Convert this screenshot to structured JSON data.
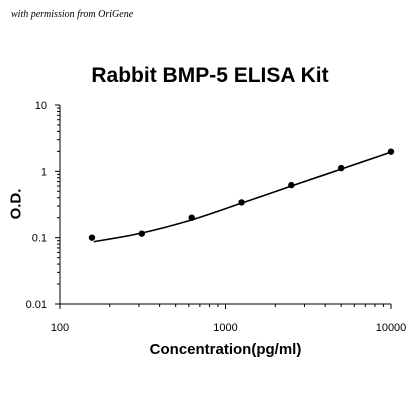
{
  "credit": "with permission from OriGene",
  "chart_data": {
    "type": "scatter",
    "title": "Rabbit BMP-5 ELISA Kit",
    "xlabel": "Concentration(pg/ml)",
    "ylabel": "O.D.",
    "xscale": "log",
    "yscale": "log",
    "xlim": [
      100,
      10000
    ],
    "ylim": [
      0.01,
      10
    ],
    "xticks": [
      100,
      1000,
      10000
    ],
    "xtick_labels": [
      "100",
      "1000",
      "10000"
    ],
    "yticks": [
      0.01,
      0.1,
      1,
      10
    ],
    "ytick_labels": [
      "0.01",
      "0.1",
      "1",
      "10"
    ],
    "grid": false,
    "colors": {
      "points": "#000000",
      "curve": "#000000",
      "axes": "#000000"
    },
    "series": [
      {
        "kind": "points",
        "x": [
          156,
          312,
          625,
          1250,
          2500,
          5000,
          10000
        ],
        "y": [
          0.1,
          0.115,
          0.2,
          0.34,
          0.62,
          1.12,
          1.98
        ]
      },
      {
        "kind": "fitted-curve",
        "x": [
          160,
          300,
          600,
          1200,
          2500,
          5000,
          10000
        ],
        "y": [
          0.087,
          0.115,
          0.18,
          0.32,
          0.6,
          1.08,
          1.95
        ]
      }
    ]
  }
}
